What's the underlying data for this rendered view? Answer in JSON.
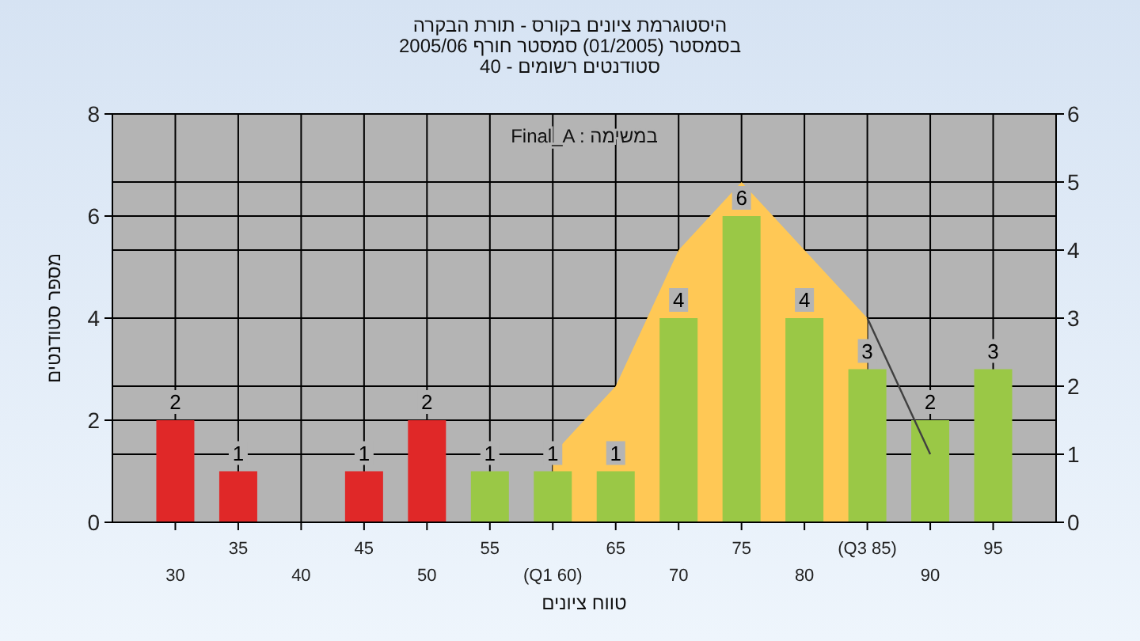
{
  "chart_data": {
    "type": "bar",
    "title": "היסטוגרמת ציונים בקורס - תורת הבקרה",
    "subtitle": "בסמסטר (01/2005) סמסטר חורף 2005/06\nסטודנטים רשומים - 40",
    "xlabel": "טווח ציונים",
    "ylabel": "מספר סטודנטים",
    "annotations": [
      "Final_A : במשימה"
    ],
    "categories": [
      "30",
      "35",
      "40",
      "45",
      "50",
      "55",
      "(Q1 60)",
      "65",
      "70",
      "75",
      "80",
      "(Q3 85)",
      "90",
      "95"
    ],
    "series": [
      {
        "type": "area",
        "axis": "y2",
        "color": "#ffc855",
        "values": [
          null,
          null,
          null,
          null,
          null,
          null,
          1,
          2,
          4,
          5,
          4,
          3,
          null,
          null
        ]
      },
      {
        "values": [
          2,
          1,
          0,
          1,
          2,
          1,
          1,
          1,
          4,
          6,
          4,
          3,
          2,
          3
        ],
        "value_labels": [
          "2",
          "1",
          null,
          "1",
          "2",
          "1",
          "1",
          "1",
          "4",
          "6",
          "4",
          "3",
          "2",
          "3"
        ],
        "colors": [
          "#e02828",
          "#e02828",
          "#e02828",
          "#e02828",
          "#e02828",
          "#9ac846",
          "#9ac846",
          "#9ac846",
          "#9ac846",
          "#9ac846",
          "#9ac846",
          "#9ac846",
          "#9ac846",
          "#9ac846"
        ]
      },
      {
        "type": "line",
        "axis": "y2",
        "color": "#404040",
        "values": [
          null,
          null,
          null,
          null,
          null,
          null,
          null,
          null,
          null,
          null,
          null,
          3,
          1,
          null
        ]
      }
    ],
    "ylim": [
      0,
      8
    ],
    "yticks": [
      0,
      2,
      4,
      6,
      8
    ],
    "y2lim": [
      0,
      6
    ],
    "y2ticks": [
      0,
      1,
      2,
      3,
      4,
      5,
      6
    ],
    "grid": true,
    "line_style": "solid"
  }
}
